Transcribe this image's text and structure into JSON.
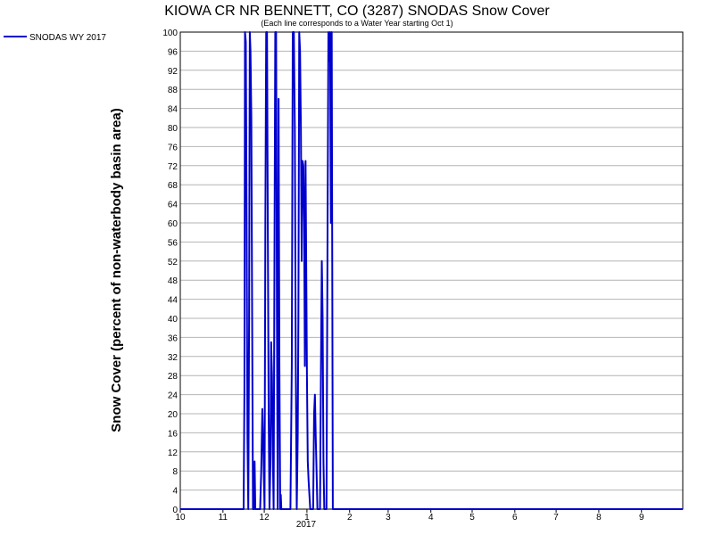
{
  "chart_data": {
    "type": "line",
    "title": "KIOWA CR NR BENNETT, CO (3287) SNODAS Snow Cover",
    "subtitle": "(Each line corresponds to a Water Year starting Oct 1)",
    "ylabel": "Snow Cover (percent of non-waterbody basin area)",
    "xlabel": "",
    "year_label": "2017",
    "ylim": [
      0,
      100
    ],
    "y_ticks": [
      0,
      4,
      8,
      12,
      16,
      20,
      24,
      28,
      32,
      36,
      40,
      44,
      48,
      52,
      56,
      60,
      64,
      68,
      72,
      76,
      80,
      84,
      88,
      92,
      96,
      100
    ],
    "x_ticks": [
      {
        "label": "10",
        "day": 0
      },
      {
        "label": "11",
        "day": 31
      },
      {
        "label": "12",
        "day": 61
      },
      {
        "label": "1",
        "day": 92
      },
      {
        "label": "2",
        "day": 123
      },
      {
        "label": "3",
        "day": 151
      },
      {
        "label": "4",
        "day": 182
      },
      {
        "label": "5",
        "day": 212
      },
      {
        "label": "6",
        "day": 243
      },
      {
        "label": "7",
        "day": 273
      },
      {
        "label": "8",
        "day": 304
      },
      {
        "label": "9",
        "day": 335
      }
    ],
    "xlim_days": [
      0,
      365
    ],
    "grid": true,
    "legend_position": "top-left",
    "series": [
      {
        "name": "SNODAS WY 2017",
        "color": "#0000cc",
        "points": [
          [
            0,
            0
          ],
          [
            46,
            0
          ],
          [
            46.6,
            25
          ],
          [
            47,
            100
          ],
          [
            47.6,
            98
          ],
          [
            48.2,
            60
          ],
          [
            48.8,
            15
          ],
          [
            49.4,
            0
          ],
          [
            50,
            40
          ],
          [
            50.5,
            100
          ],
          [
            51,
            96
          ],
          [
            51.6,
            82
          ],
          [
            52.2,
            40
          ],
          [
            52.8,
            0
          ],
          [
            53.5,
            0
          ],
          [
            54,
            10
          ],
          [
            54.5,
            0
          ],
          [
            58,
            0
          ],
          [
            58.8,
            8
          ],
          [
            59.6,
            21
          ],
          [
            60.4,
            12
          ],
          [
            61.2,
            0
          ],
          [
            61.8,
            60
          ],
          [
            62.4,
            100
          ],
          [
            63,
            100
          ],
          [
            63.6,
            58
          ],
          [
            64.2,
            20
          ],
          [
            64.8,
            0
          ],
          [
            65.5,
            10
          ],
          [
            66,
            35
          ],
          [
            66.6,
            28
          ],
          [
            67.2,
            12
          ],
          [
            67.8,
            0
          ],
          [
            68.5,
            60
          ],
          [
            69,
            100
          ],
          [
            69.6,
            100
          ],
          [
            70.2,
            40
          ],
          [
            70.8,
            0
          ],
          [
            71.4,
            86
          ],
          [
            72,
            30
          ],
          [
            72.6,
            0
          ],
          [
            73,
            3
          ],
          [
            73.4,
            0
          ],
          [
            80,
            0
          ],
          [
            81,
            30
          ],
          [
            81.7,
            100
          ],
          [
            82.5,
            100
          ],
          [
            83.2,
            80
          ],
          [
            83.9,
            30
          ],
          [
            84.6,
            0
          ],
          [
            85.3,
            15
          ],
          [
            85.8,
            40
          ],
          [
            86.4,
            100
          ],
          [
            87,
            96
          ],
          [
            87.6,
            80
          ],
          [
            88.2,
            52
          ],
          [
            88.8,
            73
          ],
          [
            89.4,
            72
          ],
          [
            90,
            60
          ],
          [
            90.5,
            30
          ],
          [
            91,
            73
          ],
          [
            91.5,
            50
          ],
          [
            92,
            28
          ],
          [
            92.6,
            10
          ],
          [
            93.2,
            6
          ],
          [
            93.8,
            3
          ],
          [
            94.4,
            0
          ],
          [
            96.5,
            0
          ],
          [
            97.2,
            20
          ],
          [
            97.8,
            24
          ],
          [
            98.4,
            15
          ],
          [
            99,
            8
          ],
          [
            99.6,
            0
          ],
          [
            101.5,
            0
          ],
          [
            102.2,
            30
          ],
          [
            102.8,
            52
          ],
          [
            103.4,
            40
          ],
          [
            104,
            10
          ],
          [
            104.6,
            0
          ],
          [
            106.2,
            0
          ],
          [
            107,
            60
          ],
          [
            107.6,
            100
          ],
          [
            108.2,
            94
          ],
          [
            108.8,
            100
          ],
          [
            109.4,
            60
          ],
          [
            110,
            100
          ],
          [
            110.8,
            0
          ],
          [
            120,
            0
          ],
          [
            365,
            0
          ]
        ]
      }
    ]
  }
}
